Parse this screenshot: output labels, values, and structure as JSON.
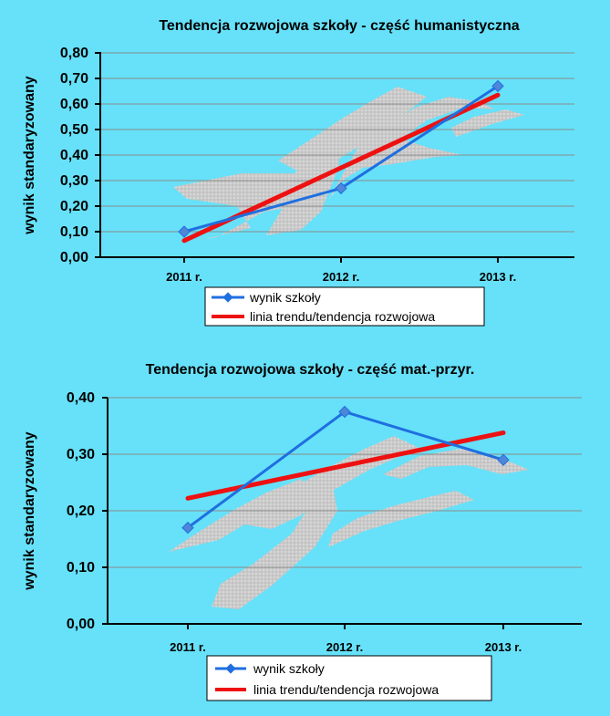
{
  "colors": {
    "background": "#66e1f9",
    "gridline": "#8a8a8a",
    "axis": "#000000",
    "series_actual": "#1f6fe0",
    "series_trend": "#ee1111",
    "watermark": "#cfcfcf",
    "legend_bg": "#ffffff"
  },
  "chart_data": [
    {
      "type": "line",
      "title": "Tendencja rozwojowa szkoły - część humanistyczna",
      "ylabel": "wynik standaryzowany",
      "xlabel": "",
      "categories": [
        "2011 r.",
        "2012 r.",
        "2013 r."
      ],
      "ylim": [
        0,
        0.8
      ],
      "yticks": [
        "0,00",
        "0,10",
        "0,20",
        "0,30",
        "0,40",
        "0,50",
        "0,60",
        "0,70",
        "0,80"
      ],
      "grid": true,
      "legend_position": "bottom-center",
      "series": [
        {
          "name": "wynik szkoły",
          "values": [
            0.1,
            0.27,
            0.67
          ],
          "marker": "diamond"
        },
        {
          "name": "linia trendu/tendencja  rozwojowa",
          "values": [
            0.065,
            0.35,
            0.635
          ]
        }
      ]
    },
    {
      "type": "line",
      "title": "Tendencja rozwojowa szkoły - część mat.-przyr.",
      "ylabel": "wynik standaryzowany",
      "xlabel": "",
      "categories": [
        "2011 r.",
        "2012 r.",
        "2013 r."
      ],
      "ylim": [
        0,
        0.4
      ],
      "yticks": [
        "0,00",
        "0,10",
        "0,20",
        "0,30",
        "0,40"
      ],
      "grid": true,
      "legend_position": "bottom-center",
      "series": [
        {
          "name": "wynik szkoły",
          "values": [
            0.17,
            0.375,
            0.29
          ],
          "marker": "diamond"
        },
        {
          "name": "linia trendu/tendencja  rozwojowa",
          "values": [
            0.222,
            0.28,
            0.338
          ]
        }
      ]
    }
  ]
}
